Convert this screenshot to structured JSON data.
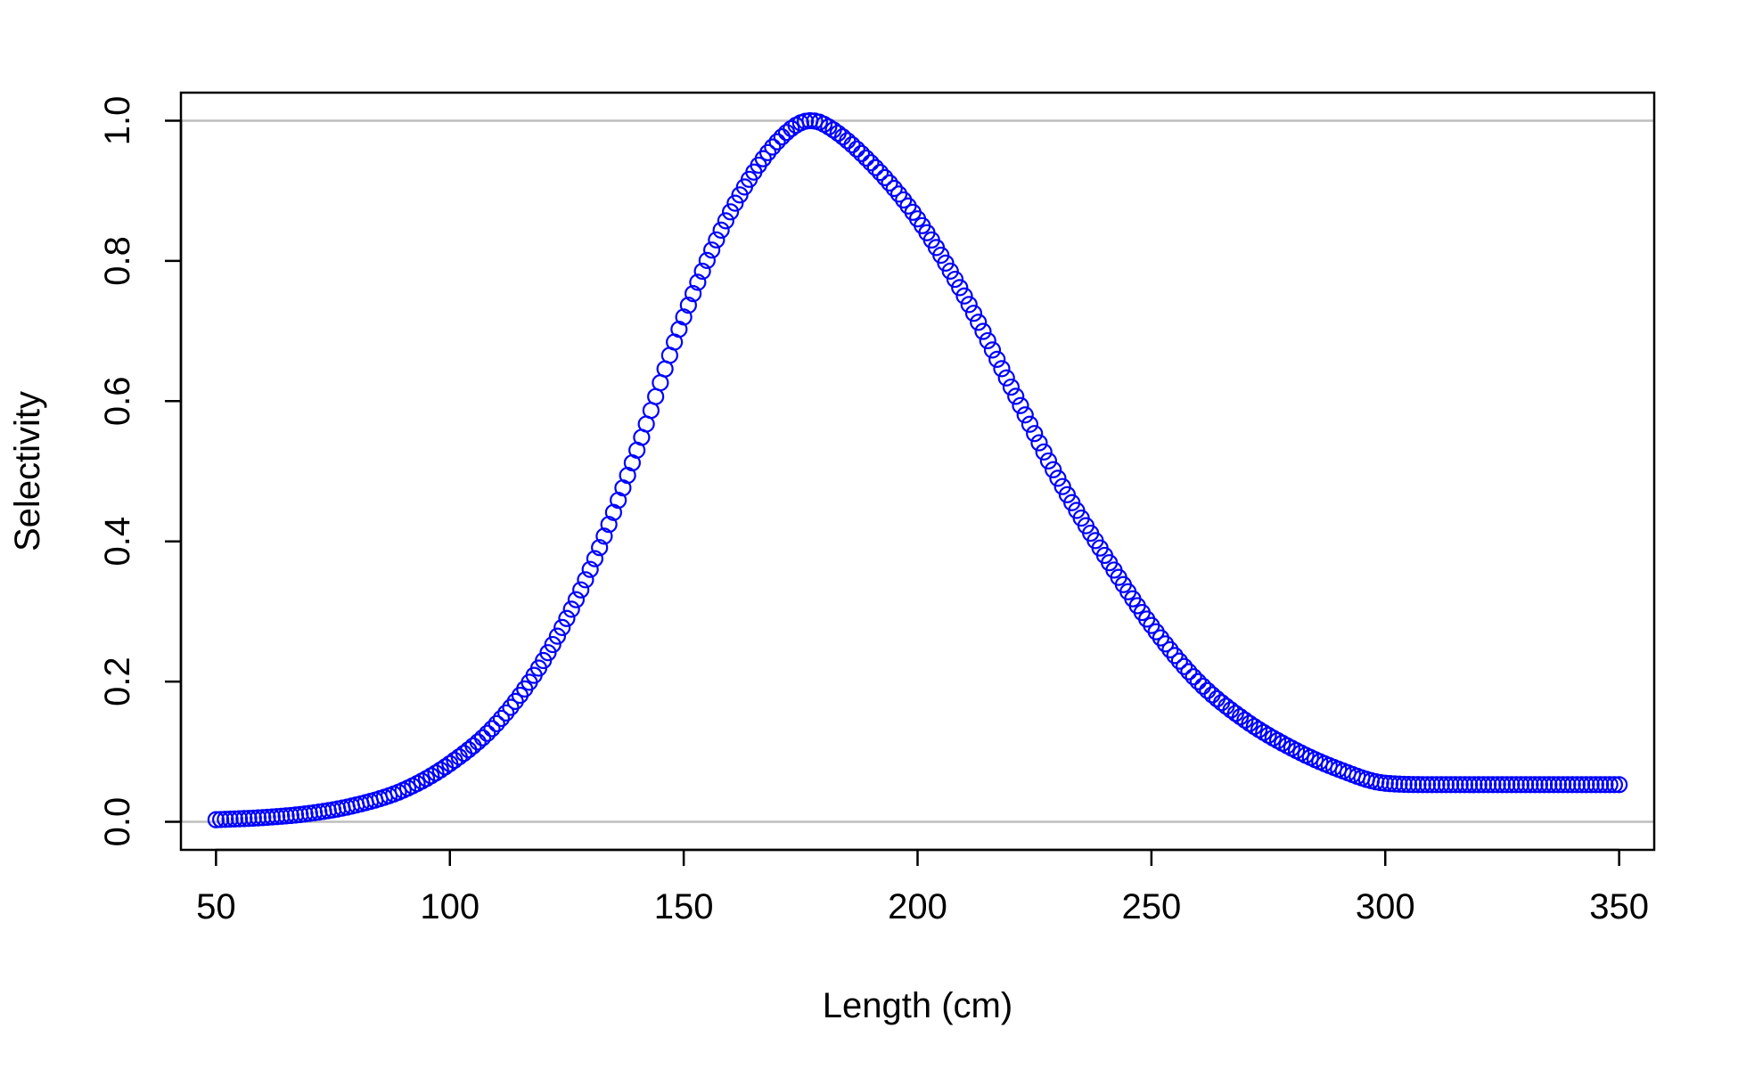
{
  "colors": {
    "points": "#0000ff",
    "reference_lines": "#bebebe",
    "axes": "#000000",
    "background": "#ffffff"
  },
  "chart_data": {
    "type": "scatter",
    "xlabel": "Length (cm)",
    "ylabel": "Selectivity",
    "xlim": [
      42.5,
      357.5
    ],
    "ylim": [
      -0.04,
      1.04
    ],
    "x_ticks": [
      50,
      100,
      150,
      200,
      250,
      300,
      350
    ],
    "y_ticks": [
      0.0,
      0.2,
      0.4,
      0.6,
      0.8,
      1.0
    ],
    "x_tick_labels": [
      "50",
      "100",
      "150",
      "200",
      "250",
      "300",
      "350"
    ],
    "y_tick_labels": [
      "0.0",
      "0.2",
      "0.4",
      "0.6",
      "0.8",
      "1.0"
    ],
    "reference_lines_y": [
      0,
      1
    ],
    "grid": false,
    "marker": "open-circle",
    "series": [
      {
        "x_start": 50,
        "x_end": 350,
        "x_step": 1,
        "points": [
          [
            50,
            0.003
          ],
          [
            60,
            0.006
          ],
          [
            70,
            0.012
          ],
          [
            80,
            0.024
          ],
          [
            90,
            0.045
          ],
          [
            100,
            0.083
          ],
          [
            110,
            0.14
          ],
          [
            120,
            0.23
          ],
          [
            130,
            0.36
          ],
          [
            140,
            0.53
          ],
          [
            150,
            0.72
          ],
          [
            160,
            0.87
          ],
          [
            170,
            0.97
          ],
          [
            177,
            1.0
          ],
          [
            180,
            0.995
          ],
          [
            190,
            0.94
          ],
          [
            200,
            0.86
          ],
          [
            210,
            0.75
          ],
          [
            220,
            0.62
          ],
          [
            230,
            0.49
          ],
          [
            240,
            0.38
          ],
          [
            250,
            0.28
          ],
          [
            260,
            0.2
          ],
          [
            270,
            0.145
          ],
          [
            280,
            0.105
          ],
          [
            290,
            0.075
          ],
          [
            300,
            0.055
          ],
          [
            310,
            0.053
          ],
          [
            320,
            0.053
          ],
          [
            330,
            0.053
          ],
          [
            340,
            0.053
          ],
          [
            350,
            0.053
          ]
        ]
      }
    ]
  }
}
